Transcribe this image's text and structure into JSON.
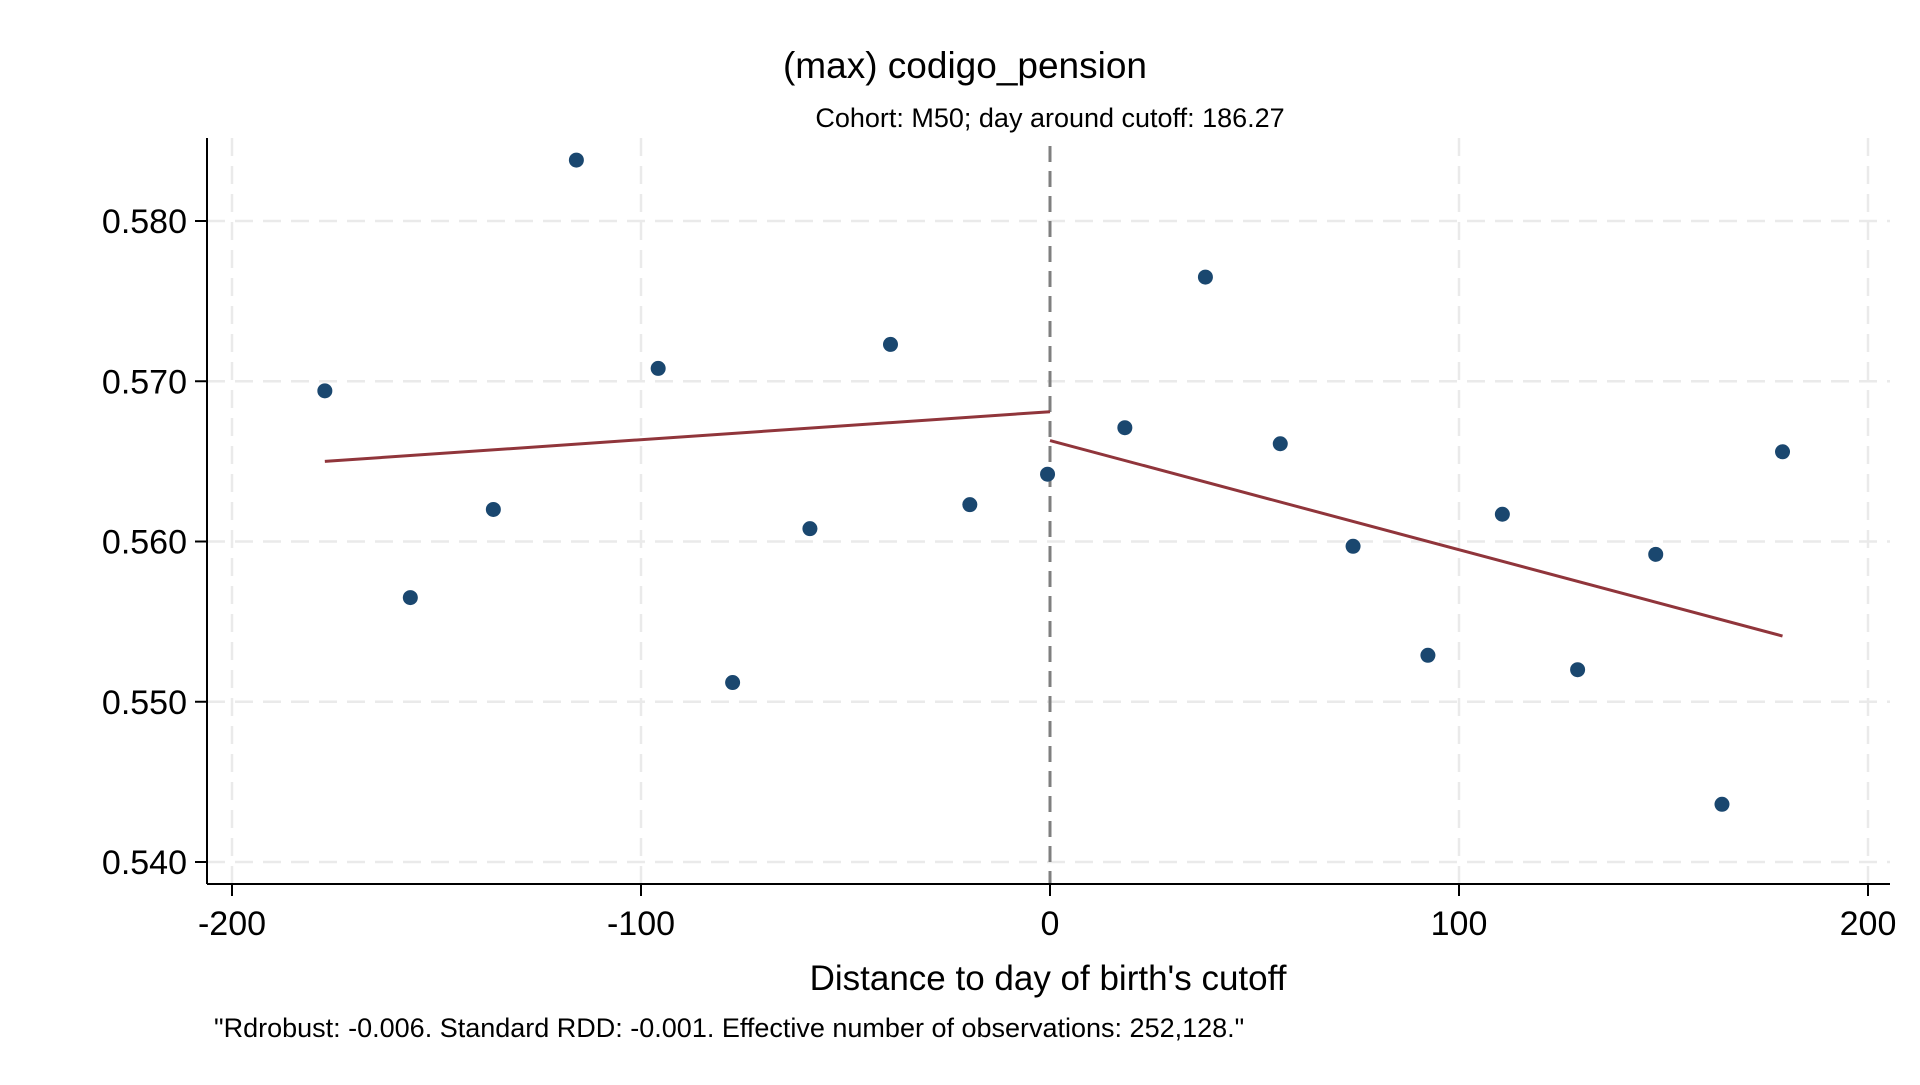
{
  "chart_data": {
    "type": "scatter",
    "title": "(max) codigo_pension",
    "subtitle": "Cohort: M50; day around cutoff:  186.27",
    "xlabel": "Distance to day of birth's cutoff",
    "ylabel": "",
    "note": "\"Rdrobust: -0.006. Standard RDD: -0.001. Effective number of observations: 252,128.\"",
    "xlim": [
      -200,
      200
    ],
    "ylim": [
      0.5385,
      0.5848
    ],
    "x_ticks": [
      -200,
      -100,
      0,
      100,
      200
    ],
    "x_tick_labels": [
      "-200",
      "-100",
      "0",
      "100",
      "200"
    ],
    "y_ticks": [
      0.54,
      0.55,
      0.56,
      0.57,
      0.58
    ],
    "y_tick_labels": [
      "0.540",
      "0.550",
      "0.560",
      "0.570",
      "0.580"
    ],
    "grid": true,
    "cutoff_x": 0,
    "points": [
      {
        "x": -177.3,
        "y": 0.5694
      },
      {
        "x": -156.4,
        "y": 0.5565
      },
      {
        "x": -136.1,
        "y": 0.562
      },
      {
        "x": -115.8,
        "y": 0.5838
      },
      {
        "x": -95.8,
        "y": 0.5708
      },
      {
        "x": -77.6,
        "y": 0.5512
      },
      {
        "x": -58.7,
        "y": 0.5608
      },
      {
        "x": -39.0,
        "y": 0.5723
      },
      {
        "x": -19.6,
        "y": 0.5623
      },
      {
        "x": -0.6,
        "y": 0.5642
      },
      {
        "x": 18.3,
        "y": 0.5671
      },
      {
        "x": 38.0,
        "y": 0.5765
      },
      {
        "x": 56.3,
        "y": 0.5661
      },
      {
        "x": 74.1,
        "y": 0.5597
      },
      {
        "x": 92.4,
        "y": 0.5529
      },
      {
        "x": 110.6,
        "y": 0.5617
      },
      {
        "x": 129.0,
        "y": 0.552
      },
      {
        "x": 148.1,
        "y": 0.5592
      },
      {
        "x": 164.3,
        "y": 0.5436
      },
      {
        "x": 179.1,
        "y": 0.5656
      }
    ],
    "fit_lines": [
      {
        "x": [
          -177.3,
          0
        ],
        "y": [
          0.565,
          0.5681
        ]
      },
      {
        "x": [
          0,
          179.1
        ],
        "y": [
          0.5663,
          0.5541
        ]
      }
    ],
    "colors": {
      "points": "#1a476f",
      "fit": "#90353b",
      "grid": "#eaeaea",
      "cutoff": "#7f7f7f"
    }
  }
}
